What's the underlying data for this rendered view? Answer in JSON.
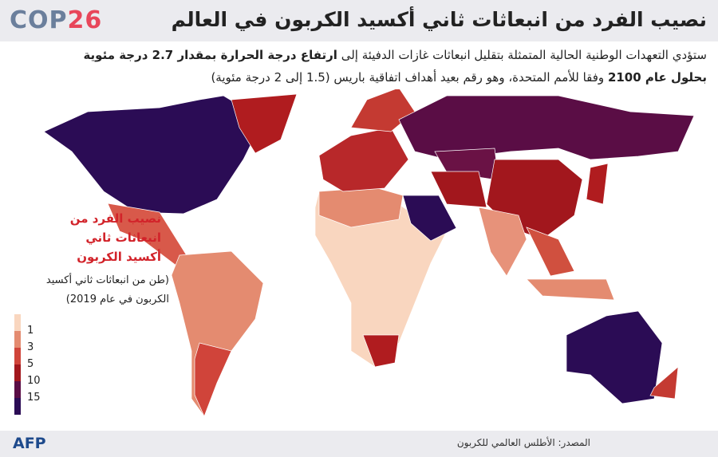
{
  "header": {
    "logo": {
      "cop": "COP",
      "number": "26"
    },
    "title": "نصيب الفرد من انبعاثات ثاني أكسيد الكربون في العالم"
  },
  "subtitle": {
    "lines": [
      [
        {
          "text": "ستؤدي التعهدات الوطنية الحالية المتمثلة بتقليل انبعاثات غازات الدفيئة إلى ",
          "bold": false
        },
        {
          "text": "ارتفاع درجة الحرارة بمقدار 2.7 درجة مئوية",
          "bold": true
        }
      ],
      [
        {
          "text": "بحلول عام 2100",
          "bold": true
        },
        {
          "text": " وفقا للأمم المتحدة، وهو رقم بعيد أهداف اتفاقية باريس (1.5 إلى 2 درجة مئوية)",
          "bold": false
        }
      ]
    ]
  },
  "legend": {
    "title_lines": [
      "نصيب الفرد من",
      "انبعاثات ثاني",
      "أكسيد الكربون"
    ],
    "unit_lines": [
      "(طن من انبعاثات ثاني أكسيد",
      "الكربون في عام 2019)"
    ],
    "colors": [
      "#f9d6bf",
      "#e48b70",
      "#d0443a",
      "#a2171d",
      "#5a0d45",
      "#2b0c55"
    ],
    "ticks": [
      1,
      3,
      5,
      10,
      15
    ]
  },
  "footer": {
    "logo": "AFP",
    "source": "المصدر: الأطلس العالمي للكربون"
  }
}
